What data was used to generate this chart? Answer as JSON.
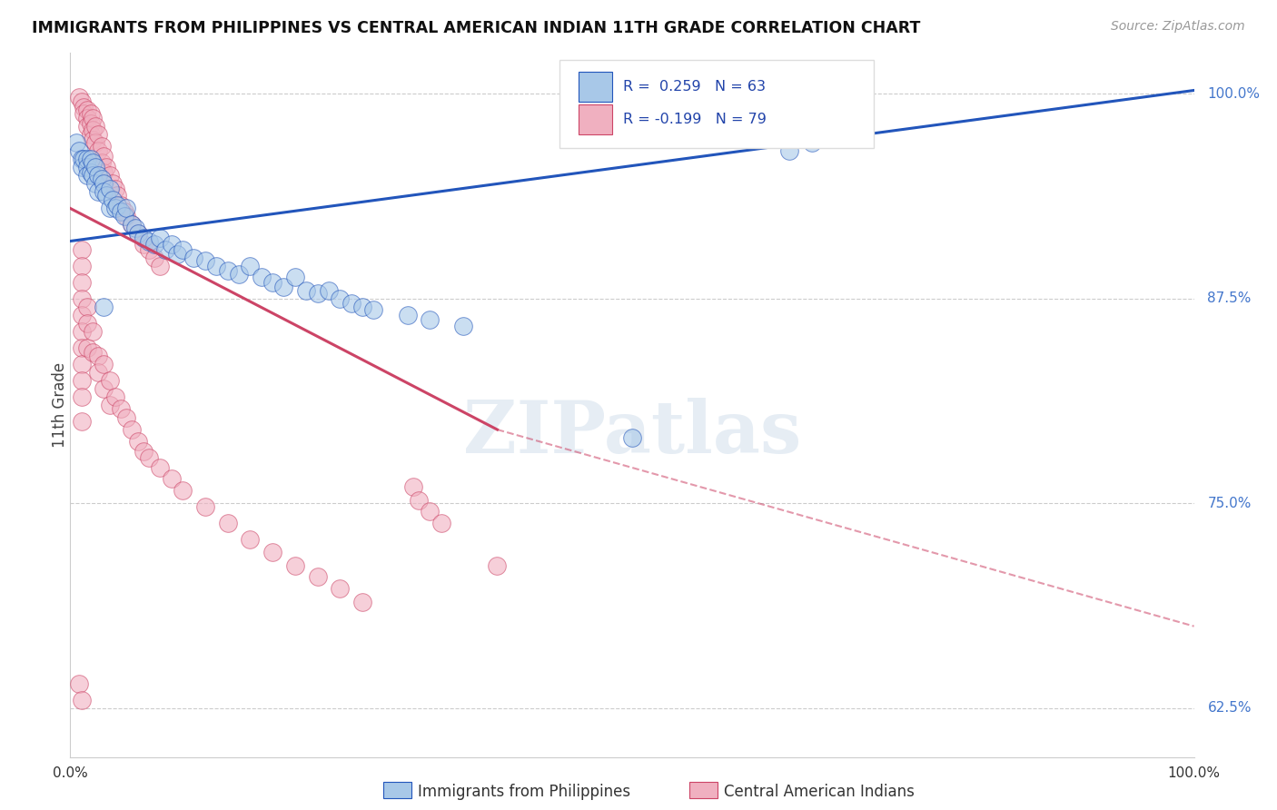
{
  "title": "IMMIGRANTS FROM PHILIPPINES VS CENTRAL AMERICAN INDIAN 11TH GRADE CORRELATION CHART",
  "source": "Source: ZipAtlas.com",
  "ylabel": "11th Grade",
  "xlim": [
    0.0,
    1.0
  ],
  "ylim": [
    0.595,
    1.025
  ],
  "yticks": [
    0.625,
    0.75,
    0.875,
    1.0
  ],
  "ytick_labels": [
    "62.5%",
    "75.0%",
    "87.5%",
    "100.0%"
  ],
  "blue_color": "#A8C8E8",
  "pink_color": "#F0B0C0",
  "blue_line_color": "#2255BB",
  "pink_line_color": "#CC4466",
  "blue_scatter": [
    [
      0.005,
      0.97
    ],
    [
      0.008,
      0.965
    ],
    [
      0.01,
      0.96
    ],
    [
      0.01,
      0.955
    ],
    [
      0.012,
      0.96
    ],
    [
      0.015,
      0.96
    ],
    [
      0.015,
      0.955
    ],
    [
      0.015,
      0.95
    ],
    [
      0.018,
      0.96
    ],
    [
      0.018,
      0.952
    ],
    [
      0.02,
      0.958
    ],
    [
      0.02,
      0.95
    ],
    [
      0.022,
      0.955
    ],
    [
      0.022,
      0.945
    ],
    [
      0.025,
      0.95
    ],
    [
      0.025,
      0.94
    ],
    [
      0.028,
      0.948
    ],
    [
      0.03,
      0.945
    ],
    [
      0.03,
      0.94
    ],
    [
      0.032,
      0.938
    ],
    [
      0.035,
      0.942
    ],
    [
      0.035,
      0.93
    ],
    [
      0.038,
      0.935
    ],
    [
      0.04,
      0.93
    ],
    [
      0.042,
      0.932
    ],
    [
      0.045,
      0.928
    ],
    [
      0.048,
      0.925
    ],
    [
      0.05,
      0.93
    ],
    [
      0.055,
      0.92
    ],
    [
      0.058,
      0.918
    ],
    [
      0.06,
      0.915
    ],
    [
      0.065,
      0.912
    ],
    [
      0.07,
      0.91
    ],
    [
      0.075,
      0.908
    ],
    [
      0.08,
      0.912
    ],
    [
      0.085,
      0.905
    ],
    [
      0.09,
      0.908
    ],
    [
      0.095,
      0.902
    ],
    [
      0.1,
      0.905
    ],
    [
      0.11,
      0.9
    ],
    [
      0.12,
      0.898
    ],
    [
      0.13,
      0.895
    ],
    [
      0.14,
      0.892
    ],
    [
      0.15,
      0.89
    ],
    [
      0.16,
      0.895
    ],
    [
      0.17,
      0.888
    ],
    [
      0.18,
      0.885
    ],
    [
      0.19,
      0.882
    ],
    [
      0.2,
      0.888
    ],
    [
      0.21,
      0.88
    ],
    [
      0.22,
      0.878
    ],
    [
      0.23,
      0.88
    ],
    [
      0.24,
      0.875
    ],
    [
      0.25,
      0.872
    ],
    [
      0.26,
      0.87
    ],
    [
      0.27,
      0.868
    ],
    [
      0.3,
      0.865
    ],
    [
      0.32,
      0.862
    ],
    [
      0.35,
      0.858
    ],
    [
      0.03,
      0.87
    ],
    [
      0.5,
      0.79
    ],
    [
      0.64,
      0.965
    ],
    [
      0.66,
      0.97
    ],
    [
      0.7,
      0.995
    ]
  ],
  "pink_scatter": [
    [
      0.008,
      0.998
    ],
    [
      0.01,
      0.995
    ],
    [
      0.012,
      0.992
    ],
    [
      0.012,
      0.988
    ],
    [
      0.015,
      0.99
    ],
    [
      0.015,
      0.985
    ],
    [
      0.015,
      0.98
    ],
    [
      0.018,
      0.988
    ],
    [
      0.018,
      0.982
    ],
    [
      0.018,
      0.975
    ],
    [
      0.02,
      0.985
    ],
    [
      0.02,
      0.978
    ],
    [
      0.02,
      0.972
    ],
    [
      0.022,
      0.98
    ],
    [
      0.022,
      0.97
    ],
    [
      0.025,
      0.975
    ],
    [
      0.025,
      0.965
    ],
    [
      0.028,
      0.968
    ],
    [
      0.028,
      0.958
    ],
    [
      0.03,
      0.962
    ],
    [
      0.03,
      0.952
    ],
    [
      0.032,
      0.955
    ],
    [
      0.035,
      0.95
    ],
    [
      0.038,
      0.945
    ],
    [
      0.04,
      0.942
    ],
    [
      0.042,
      0.938
    ],
    [
      0.045,
      0.932
    ],
    [
      0.048,
      0.928
    ],
    [
      0.05,
      0.925
    ],
    [
      0.055,
      0.92
    ],
    [
      0.06,
      0.915
    ],
    [
      0.065,
      0.908
    ],
    [
      0.07,
      0.905
    ],
    [
      0.075,
      0.9
    ],
    [
      0.08,
      0.895
    ],
    [
      0.01,
      0.905
    ],
    [
      0.01,
      0.895
    ],
    [
      0.01,
      0.885
    ],
    [
      0.01,
      0.875
    ],
    [
      0.01,
      0.865
    ],
    [
      0.01,
      0.855
    ],
    [
      0.01,
      0.845
    ],
    [
      0.01,
      0.835
    ],
    [
      0.01,
      0.825
    ],
    [
      0.01,
      0.815
    ],
    [
      0.01,
      0.8
    ],
    [
      0.015,
      0.87
    ],
    [
      0.015,
      0.86
    ],
    [
      0.015,
      0.845
    ],
    [
      0.02,
      0.855
    ],
    [
      0.02,
      0.842
    ],
    [
      0.025,
      0.84
    ],
    [
      0.025,
      0.83
    ],
    [
      0.03,
      0.835
    ],
    [
      0.03,
      0.82
    ],
    [
      0.035,
      0.825
    ],
    [
      0.035,
      0.81
    ],
    [
      0.04,
      0.815
    ],
    [
      0.045,
      0.808
    ],
    [
      0.05,
      0.802
    ],
    [
      0.055,
      0.795
    ],
    [
      0.06,
      0.788
    ],
    [
      0.065,
      0.782
    ],
    [
      0.07,
      0.778
    ],
    [
      0.08,
      0.772
    ],
    [
      0.09,
      0.765
    ],
    [
      0.1,
      0.758
    ],
    [
      0.12,
      0.748
    ],
    [
      0.14,
      0.738
    ],
    [
      0.16,
      0.728
    ],
    [
      0.18,
      0.72
    ],
    [
      0.2,
      0.712
    ],
    [
      0.22,
      0.705
    ],
    [
      0.24,
      0.698
    ],
    [
      0.26,
      0.69
    ],
    [
      0.305,
      0.76
    ],
    [
      0.31,
      0.752
    ],
    [
      0.32,
      0.745
    ],
    [
      0.33,
      0.738
    ],
    [
      0.38,
      0.712
    ],
    [
      0.008,
      0.64
    ],
    [
      0.01,
      0.63
    ]
  ],
  "blue_trendline": [
    [
      0.0,
      0.91
    ],
    [
      1.0,
      1.002
    ]
  ],
  "pink_trendline_solid": [
    [
      0.0,
      0.93
    ],
    [
      0.38,
      0.795
    ]
  ],
  "pink_trendline_dashed": [
    [
      0.38,
      0.795
    ],
    [
      1.0,
      0.675
    ]
  ]
}
